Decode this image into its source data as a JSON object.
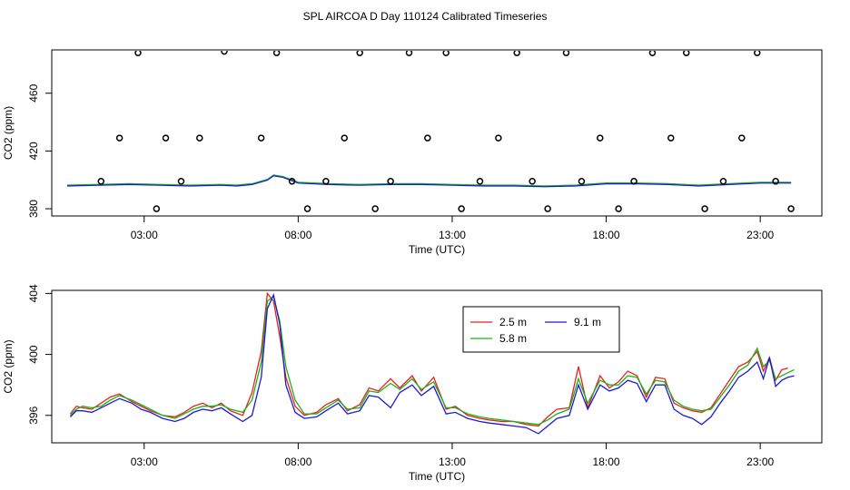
{
  "title": "SPL AIRCOA D  Day 110124  Calibrated Timeseries",
  "colors": {
    "s1": "#e8201a",
    "s2": "#18b418",
    "s3": "#1a1ad6",
    "frame": "#000000"
  },
  "chart_data": [
    {
      "type": "scatter+line",
      "xlabel": "Time (UTC)",
      "ylabel": "CO2 (ppm)",
      "xlim": [
        0.0,
        25.0
      ],
      "ylim": [
        375,
        490
      ],
      "x_ticks": [
        {
          "v": 3,
          "label": "03:00"
        },
        {
          "v": 8,
          "label": "08:00"
        },
        {
          "v": 13,
          "label": "13:00"
        },
        {
          "v": 18,
          "label": "18:00"
        },
        {
          "v": 23,
          "label": "23:00"
        }
      ],
      "y_ticks": [
        {
          "v": 380,
          "label": "380"
        },
        {
          "v": 420,
          "label": "420"
        },
        {
          "v": 460,
          "label": "460"
        }
      ],
      "points_x": [
        1.6,
        2.2,
        2.8,
        3.4,
        3.7,
        4.2,
        4.8,
        5.6,
        6.8,
        7.3,
        7.8,
        8.3,
        8.9,
        9.5,
        10.0,
        10.5,
        11.0,
        11.6,
        12.2,
        12.8,
        13.3,
        13.9,
        14.5,
        15.1,
        15.6,
        16.1,
        16.7,
        17.2,
        17.8,
        18.4,
        18.9,
        19.5,
        20.1,
        20.6,
        21.2,
        21.8,
        22.4,
        22.9,
        23.5,
        24.0
      ],
      "points_y": [
        399,
        429,
        488,
        380,
        429,
        399,
        429,
        489,
        429,
        488,
        399,
        380,
        399,
        429,
        488,
        380,
        399,
        488,
        429,
        488,
        380,
        399,
        429,
        488,
        399,
        380,
        488,
        399,
        429,
        380,
        399,
        488,
        429,
        488,
        380,
        399,
        429,
        488,
        399,
        380
      ],
      "line_x": [
        0.5,
        1.5,
        2.5,
        3.5,
        4.5,
        5.5,
        6.0,
        6.5,
        7.0,
        7.2,
        7.5,
        8.0,
        9.0,
        10.0,
        11.0,
        12.0,
        13.0,
        14.0,
        15.0,
        16.0,
        17.0,
        18.0,
        19.0,
        20.0,
        21.0,
        22.0,
        23.0,
        24.0
      ],
      "line_y": [
        396,
        396.5,
        397,
        396.5,
        396,
        396.5,
        396,
        397,
        400,
        403,
        402,
        398,
        397,
        396.5,
        397,
        397,
        396.5,
        396,
        396,
        395.5,
        396,
        397.5,
        397.5,
        397,
        396,
        397,
        398,
        398
      ]
    },
    {
      "type": "line",
      "xlabel": "Time (UTC)",
      "ylabel": "CO2 (ppm)",
      "xlim": [
        0.0,
        25.0
      ],
      "ylim": [
        394.2,
        404.2
      ],
      "x_ticks": [
        {
          "v": 3,
          "label": "03:00"
        },
        {
          "v": 8,
          "label": "08:00"
        },
        {
          "v": 13,
          "label": "13:00"
        },
        {
          "v": 18,
          "label": "18:00"
        },
        {
          "v": 23,
          "label": "23:00"
        }
      ],
      "y_ticks": [
        {
          "v": 396,
          "label": "396"
        },
        {
          "v": 400,
          "label": "400"
        },
        {
          "v": 404,
          "label": "404"
        }
      ],
      "legend": {
        "position": "top-center",
        "entries": [
          "2.5 m",
          "5.8 m",
          "9.1 m"
        ]
      },
      "series": [
        {
          "name": "2.5 m",
          "x": [
            0.6,
            0.8,
            1.0,
            1.3,
            1.6,
            1.9,
            2.2,
            2.6,
            2.9,
            3.2,
            3.6,
            4.0,
            4.3,
            4.6,
            4.9,
            5.2,
            5.5,
            5.8,
            6.2,
            6.5,
            6.8,
            7.0,
            7.2,
            7.4,
            7.6,
            7.9,
            8.2,
            8.6,
            8.9,
            9.3,
            9.6,
            10.0,
            10.3,
            10.6,
            11.0,
            11.3,
            11.7,
            12.0,
            12.4,
            12.8,
            13.1,
            13.5,
            13.9,
            14.2,
            14.6,
            15.0,
            15.4,
            15.8,
            16.1,
            16.4,
            16.8,
            17.1,
            17.4,
            17.8,
            18.1,
            18.4,
            18.7,
            19.0,
            19.3,
            19.6,
            19.9,
            20.2,
            20.5,
            20.8,
            21.1,
            21.4,
            21.7,
            22.0,
            22.3,
            22.6,
            22.9,
            23.1,
            23.3,
            23.5,
            23.7,
            23.9
          ],
          "y": [
            396.1,
            396.6,
            396.5,
            396.4,
            396.8,
            397.2,
            397.4,
            396.9,
            396.6,
            396.3,
            396.0,
            395.9,
            396.2,
            396.6,
            396.8,
            396.5,
            396.8,
            396.3,
            396.0,
            397.5,
            400.2,
            404.0,
            403.5,
            401.2,
            398.5,
            396.6,
            396.0,
            396.2,
            396.7,
            397.1,
            396.3,
            396.7,
            397.8,
            397.6,
            398.4,
            397.8,
            398.6,
            397.6,
            398.5,
            396.4,
            396.6,
            396.0,
            395.8,
            395.7,
            395.6,
            395.6,
            395.4,
            395.3,
            395.9,
            396.4,
            396.5,
            399.2,
            396.5,
            398.6,
            397.8,
            398.2,
            398.9,
            398.6,
            397.2,
            398.5,
            398.4,
            396.8,
            396.5,
            396.3,
            396.2,
            396.5,
            397.4,
            398.3,
            399.2,
            399.5,
            400.2,
            398.9,
            399.8,
            398.3,
            399.0,
            399.1
          ]
        },
        {
          "name": "5.8 m",
          "x": [
            0.6,
            0.8,
            1.0,
            1.3,
            1.6,
            1.9,
            2.2,
            2.6,
            2.9,
            3.2,
            3.6,
            4.0,
            4.3,
            4.6,
            4.9,
            5.2,
            5.5,
            5.8,
            6.2,
            6.5,
            6.8,
            7.0,
            7.2,
            7.4,
            7.6,
            7.9,
            8.2,
            8.6,
            8.9,
            9.3,
            9.6,
            10.0,
            10.3,
            10.6,
            11.0,
            11.3,
            11.7,
            12.0,
            12.4,
            12.8,
            13.1,
            13.5,
            13.9,
            14.2,
            14.6,
            15.0,
            15.4,
            15.8,
            16.1,
            16.4,
            16.8,
            17.1,
            17.4,
            17.8,
            18.1,
            18.4,
            18.7,
            19.0,
            19.3,
            19.6,
            19.9,
            20.2,
            20.5,
            20.8,
            21.1,
            21.4,
            21.7,
            22.0,
            22.3,
            22.6,
            22.9,
            23.1,
            23.3,
            23.5,
            23.7,
            23.9,
            24.1
          ],
          "y": [
            396.0,
            396.4,
            396.6,
            396.5,
            396.6,
            397.0,
            397.3,
            397.0,
            396.7,
            396.4,
            396.0,
            395.8,
            396.1,
            396.4,
            396.6,
            396.6,
            396.7,
            396.4,
            396.2,
            397.0,
            399.5,
            403.5,
            403.8,
            402.2,
            399.2,
            397.0,
            396.1,
            396.1,
            396.5,
            397.0,
            396.4,
            396.5,
            397.6,
            397.5,
            398.1,
            397.7,
            398.4,
            397.7,
            398.2,
            396.5,
            396.5,
            396.1,
            395.9,
            395.8,
            395.7,
            395.6,
            395.5,
            395.4,
            395.7,
            396.1,
            396.4,
            398.4,
            396.8,
            398.3,
            398.0,
            398.0,
            398.6,
            398.5,
            397.4,
            398.3,
            398.2,
            397.0,
            396.6,
            396.4,
            396.3,
            396.4,
            397.2,
            398.0,
            398.9,
            399.3,
            400.4,
            399.2,
            399.6,
            398.4,
            398.6,
            398.8,
            399.0
          ]
        },
        {
          "name": "9.1 m",
          "x": [
            0.6,
            0.8,
            1.0,
            1.3,
            1.6,
            1.9,
            2.2,
            2.6,
            2.9,
            3.2,
            3.6,
            4.0,
            4.3,
            4.6,
            4.9,
            5.2,
            5.5,
            5.8,
            6.2,
            6.5,
            6.8,
            7.0,
            7.2,
            7.4,
            7.6,
            7.9,
            8.2,
            8.6,
            8.9,
            9.3,
            9.6,
            10.0,
            10.3,
            10.6,
            11.0,
            11.3,
            11.7,
            12.0,
            12.4,
            12.8,
            13.1,
            13.5,
            13.9,
            14.2,
            14.6,
            15.0,
            15.4,
            15.8,
            16.1,
            16.4,
            16.8,
            17.1,
            17.4,
            17.8,
            18.1,
            18.4,
            18.7,
            19.0,
            19.3,
            19.6,
            19.9,
            20.2,
            20.5,
            20.8,
            21.1,
            21.4,
            21.7,
            22.0,
            22.3,
            22.6,
            22.9,
            23.1,
            23.3,
            23.5,
            23.7,
            23.9,
            24.1
          ],
          "y": [
            395.9,
            396.3,
            396.3,
            396.2,
            396.5,
            396.8,
            397.1,
            396.8,
            396.4,
            396.2,
            395.8,
            395.6,
            395.8,
            396.2,
            396.4,
            396.3,
            396.5,
            396.1,
            395.6,
            396.0,
            398.5,
            403.0,
            403.9,
            402.0,
            398.0,
            396.2,
            395.8,
            395.9,
            396.3,
            396.8,
            396.1,
            396.3,
            397.3,
            397.2,
            396.5,
            397.5,
            398.0,
            397.3,
            397.9,
            396.1,
            396.2,
            395.8,
            395.6,
            395.5,
            395.4,
            395.3,
            395.2,
            394.8,
            395.3,
            395.8,
            396.0,
            398.0,
            396.4,
            398.0,
            397.6,
            397.8,
            398.3,
            398.1,
            396.9,
            398.0,
            398.0,
            396.4,
            396.0,
            395.8,
            395.4,
            395.9,
            396.8,
            397.6,
            398.5,
            398.9,
            399.5,
            398.4,
            399.8,
            397.9,
            398.3,
            398.5,
            398.6
          ]
        }
      ]
    }
  ]
}
